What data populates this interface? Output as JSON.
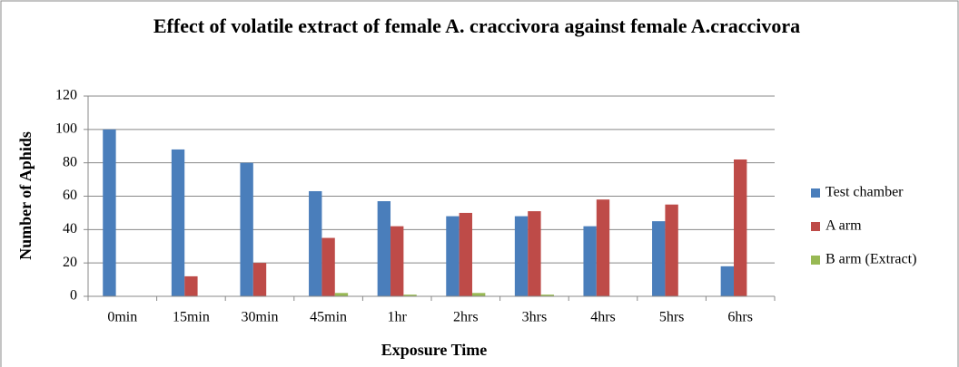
{
  "chart_data": {
    "type": "bar",
    "title": "Effect of volatile extract of female A. craccivora against female A.craccivora",
    "x_label": "Exposure Time",
    "y_label": "Number of Aphids",
    "categories": [
      "0min",
      "15min",
      "30min",
      "45min",
      "1hr",
      "2hrs",
      "3hrs",
      "4hrs",
      "5hrs",
      "6hrs"
    ],
    "series": [
      {
        "name": "Test chamber",
        "color": "#4a7ebb",
        "values": [
          100,
          88,
          80,
          63,
          57,
          48,
          48,
          42,
          45,
          18
        ]
      },
      {
        "name": "A arm",
        "color": "#be4b48",
        "values": [
          0,
          12,
          20,
          35,
          42,
          50,
          51,
          58,
          55,
          82
        ]
      },
      {
        "name": "B arm (Extract)",
        "color": "#98b954",
        "values": [
          0,
          0,
          0,
          2,
          1,
          2,
          1,
          0,
          0,
          0
        ]
      }
    ],
    "ylim": [
      0,
      120
    ],
    "yticks": [
      0,
      20,
      40,
      60,
      80,
      100,
      120
    ],
    "grid": true,
    "legend": "right"
  }
}
